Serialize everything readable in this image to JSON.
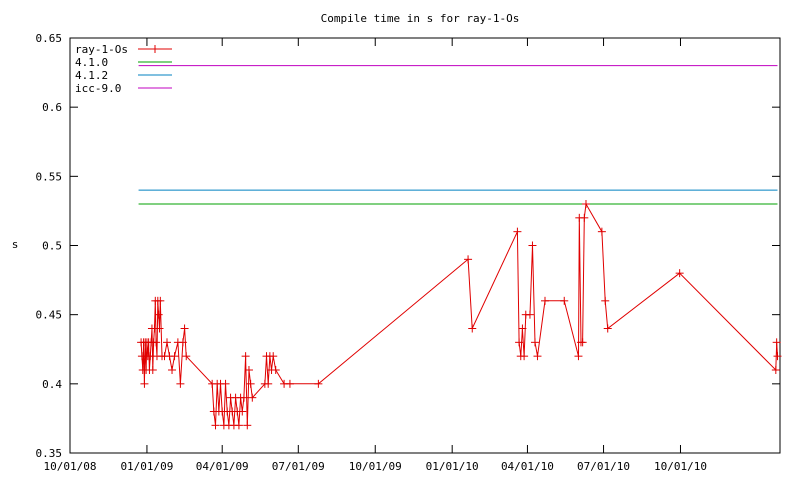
{
  "chart_data": {
    "type": "line",
    "title": "Compile time in s for ray-1-Os",
    "ylabel": "s",
    "xlabel": "",
    "ylim": [
      0.35,
      0.65
    ],
    "yticks": [
      "0.35",
      "0.4",
      "0.45",
      "0.5",
      "0.55",
      "0.6",
      "0.65"
    ],
    "xlim": [
      "2008-10-01",
      "2011-01-28"
    ],
    "xticks": [
      {
        "date": "2008-10-01",
        "label": "10/01/08"
      },
      {
        "date": "2009-01-01",
        "label": "01/01/09"
      },
      {
        "date": "2009-04-01",
        "label": "04/01/09"
      },
      {
        "date": "2009-07-01",
        "label": "07/01/09"
      },
      {
        "date": "2009-10-01",
        "label": "10/01/09"
      },
      {
        "date": "2010-01-01",
        "label": "01/01/10"
      },
      {
        "date": "2010-04-01",
        "label": "04/01/10"
      },
      {
        "date": "2010-07-01",
        "label": "07/01/10"
      },
      {
        "date": "2010-10-01",
        "label": "10/01/10"
      }
    ],
    "legend_position": "top-left",
    "series": [
      {
        "name": "ray-1-Os",
        "color": "#e00000",
        "marker": "plus",
        "points": [
          [
            "2008-12-25",
            0.43
          ],
          [
            "2008-12-26",
            0.42
          ],
          [
            "2008-12-27",
            0.41
          ],
          [
            "2008-12-28",
            0.43
          ],
          [
            "2008-12-29",
            0.4
          ],
          [
            "2008-12-30",
            0.43
          ],
          [
            "2008-12-31",
            0.41
          ],
          [
            "2009-01-01",
            0.43
          ],
          [
            "2009-01-02",
            0.42
          ],
          [
            "2009-01-03",
            0.43
          ],
          [
            "2009-01-04",
            0.41
          ],
          [
            "2009-01-05",
            0.42
          ],
          [
            "2009-01-06",
            0.43
          ],
          [
            "2009-01-07",
            0.44
          ],
          [
            "2009-01-08",
            0.41
          ],
          [
            "2009-01-09",
            0.43
          ],
          [
            "2009-01-10",
            0.44
          ],
          [
            "2009-01-11",
            0.46
          ],
          [
            "2009-01-12",
            0.43
          ],
          [
            "2009-01-13",
            0.42
          ],
          [
            "2009-01-14",
            0.46
          ],
          [
            "2009-01-15",
            0.45
          ],
          [
            "2009-01-16",
            0.44
          ],
          [
            "2009-01-17",
            0.46
          ],
          [
            "2009-01-19",
            0.42
          ],
          [
            "2009-01-22",
            0.42
          ],
          [
            "2009-01-25",
            0.43
          ],
          [
            "2009-01-28",
            0.42
          ],
          [
            "2009-01-31",
            0.41
          ],
          [
            "2009-02-03",
            0.42
          ],
          [
            "2009-02-07",
            0.43
          ],
          [
            "2009-02-10",
            0.4
          ],
          [
            "2009-02-13",
            0.43
          ],
          [
            "2009-02-15",
            0.44
          ],
          [
            "2009-02-17",
            0.42
          ],
          [
            "2009-03-20",
            0.4
          ],
          [
            "2009-03-22",
            0.38
          ],
          [
            "2009-03-24",
            0.37
          ],
          [
            "2009-03-26",
            0.4
          ],
          [
            "2009-03-28",
            0.38
          ],
          [
            "2009-03-30",
            0.4
          ],
          [
            "2009-04-01",
            0.38
          ],
          [
            "2009-04-03",
            0.37
          ],
          [
            "2009-04-05",
            0.4
          ],
          [
            "2009-04-07",
            0.38
          ],
          [
            "2009-04-09",
            0.37
          ],
          [
            "2009-04-11",
            0.39
          ],
          [
            "2009-04-13",
            0.38
          ],
          [
            "2009-04-15",
            0.37
          ],
          [
            "2009-04-17",
            0.39
          ],
          [
            "2009-04-19",
            0.38
          ],
          [
            "2009-04-21",
            0.37
          ],
          [
            "2009-04-23",
            0.39
          ],
          [
            "2009-04-25",
            0.38
          ],
          [
            "2009-04-27",
            0.39
          ],
          [
            "2009-04-29",
            0.42
          ],
          [
            "2009-05-01",
            0.37
          ],
          [
            "2009-05-03",
            0.41
          ],
          [
            "2009-05-05",
            0.4
          ],
          [
            "2009-05-07",
            0.39
          ],
          [
            "2009-05-22",
            0.4
          ],
          [
            "2009-05-24",
            0.42
          ],
          [
            "2009-05-26",
            0.4
          ],
          [
            "2009-05-28",
            0.42
          ],
          [
            "2009-05-30",
            0.41
          ],
          [
            "2009-06-01",
            0.42
          ],
          [
            "2009-06-04",
            0.41
          ],
          [
            "2009-06-14",
            0.4
          ],
          [
            "2009-06-21",
            0.4
          ],
          [
            "2009-07-25",
            0.4
          ],
          [
            "2010-01-20",
            0.49
          ],
          [
            "2010-01-25",
            0.44
          ],
          [
            "2010-03-20",
            0.51
          ],
          [
            "2010-03-22",
            0.43
          ],
          [
            "2010-03-24",
            0.42
          ],
          [
            "2010-03-26",
            0.44
          ],
          [
            "2010-03-28",
            0.42
          ],
          [
            "2010-03-30",
            0.45
          ],
          [
            "2010-04-04",
            0.45
          ],
          [
            "2010-04-07",
            0.5
          ],
          [
            "2010-04-10",
            0.43
          ],
          [
            "2010-04-13",
            0.42
          ],
          [
            "2010-04-22",
            0.46
          ],
          [
            "2010-05-15",
            0.46
          ],
          [
            "2010-06-01",
            0.42
          ],
          [
            "2010-06-02",
            0.52
          ],
          [
            "2010-06-04",
            0.43
          ],
          [
            "2010-06-06",
            0.43
          ],
          [
            "2010-06-08",
            0.52
          ],
          [
            "2010-06-10",
            0.53
          ],
          [
            "2010-06-29",
            0.51
          ],
          [
            "2010-07-03",
            0.46
          ],
          [
            "2010-07-06",
            0.44
          ],
          [
            "2010-09-30",
            0.48
          ],
          [
            "2011-01-23",
            0.41
          ],
          [
            "2011-01-24",
            0.43
          ],
          [
            "2011-01-25",
            0.42
          ]
        ]
      },
      {
        "name": "4.1.0",
        "color": "#00a000",
        "constant": 0.53
      },
      {
        "name": "4.1.2",
        "color": "#0080c0",
        "constant": 0.54
      },
      {
        "name": "icc-9.0",
        "color": "#c000c0",
        "constant": 0.63
      }
    ]
  }
}
